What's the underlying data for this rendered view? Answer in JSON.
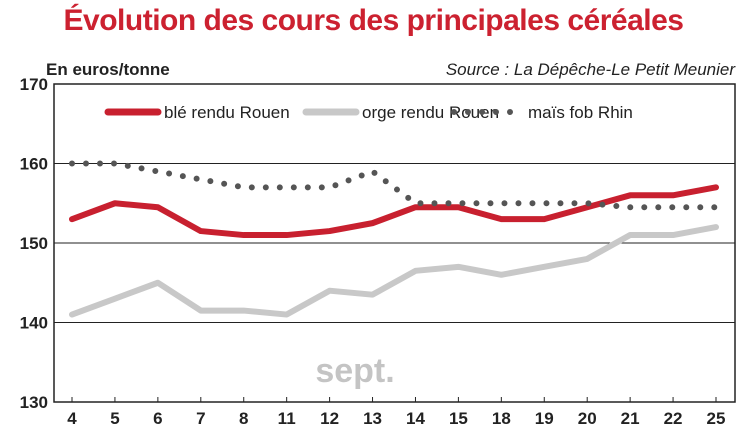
{
  "header": {
    "title": "Évolution des cours des principales céréales",
    "unit_label": "En euros/tonne",
    "source": "Source : La Dépêche-Le Petit Meunier"
  },
  "colors": {
    "title": "#cc2130",
    "ble": "#c8202f",
    "orge": "#c8c8c8",
    "mais": "#555555",
    "grid": "#222222",
    "month_note": "#c4c4c4"
  },
  "chart_data": {
    "type": "line",
    "title": "Évolution des cours des principales céréales",
    "ylabel": "En euros/tonne",
    "xlabel": "",
    "annotation": "sept.",
    "categories": [
      "4",
      "5",
      "6",
      "7",
      "8",
      "11",
      "12",
      "13",
      "14",
      "15",
      "18",
      "19",
      "20",
      "21",
      "22",
      "25"
    ],
    "yticks": [
      130,
      140,
      150,
      160,
      170
    ],
    "ylim": [
      130,
      170
    ],
    "grid": true,
    "legend_position": "top",
    "series": [
      {
        "name": "blé rendu Rouen",
        "style": "solid",
        "color": "#c8202f",
        "values": [
          153,
          155,
          154.5,
          151.5,
          151,
          151,
          151.5,
          152.5,
          154.5,
          154.5,
          153,
          153,
          154.5,
          156,
          156,
          157
        ]
      },
      {
        "name": "orge rendu Rouen",
        "style": "solid",
        "color": "#c8c8c8",
        "values": [
          141,
          143,
          145,
          141.5,
          141.5,
          141,
          144,
          143.5,
          146.5,
          147,
          146,
          147,
          148,
          151,
          151,
          152
        ]
      },
      {
        "name": "maïs fob Rhin",
        "style": "dotted",
        "color": "#555555",
        "values": [
          160,
          160,
          159,
          158,
          157,
          157,
          157,
          159,
          155,
          155,
          155,
          155,
          155,
          154.5,
          154.5,
          154.5
        ]
      }
    ]
  }
}
